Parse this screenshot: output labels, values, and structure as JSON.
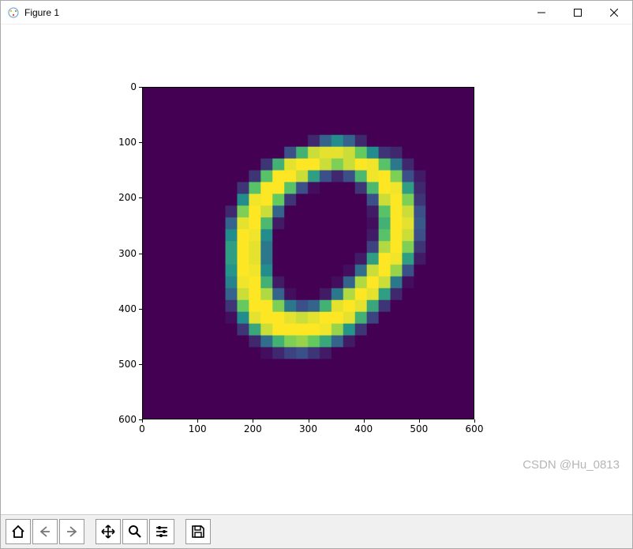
{
  "window": {
    "title": "Figure 1",
    "controls": {
      "minimize": "—",
      "maximize": "□",
      "close": "×"
    }
  },
  "plot": {
    "type": "heatmap",
    "xlim": [
      0,
      600
    ],
    "ylim": [
      0,
      600
    ],
    "y_inverted": true,
    "xticks": [
      0,
      100,
      200,
      300,
      400,
      500,
      600
    ],
    "yticks": [
      0,
      100,
      200,
      300,
      400,
      500,
      600
    ],
    "tick_fontsize": 12,
    "grid_size": 28,
    "colormap": "viridis",
    "colors": {
      "low": "#440154",
      "mid1": "#3b528b",
      "mid2": "#21918c",
      "mid3": "#5ec962",
      "high": "#fde725"
    },
    "background_color": "#ffffff",
    "axis_color": "#000000",
    "data": [
      [
        0,
        0,
        0,
        0,
        0,
        0,
        0,
        0,
        0,
        0,
        0,
        0,
        0,
        0,
        0,
        0,
        0,
        0,
        0,
        0,
        0,
        0,
        0,
        0,
        0,
        0,
        0,
        0
      ],
      [
        0,
        0,
        0,
        0,
        0,
        0,
        0,
        0,
        0,
        0,
        0,
        0,
        0,
        0,
        0,
        0,
        0,
        0,
        0,
        0,
        0,
        0,
        0,
        0,
        0,
        0,
        0,
        0
      ],
      [
        0,
        0,
        0,
        0,
        0,
        0,
        0,
        0,
        0,
        0,
        0,
        0,
        0,
        0,
        0,
        0,
        0,
        0,
        0,
        0,
        0,
        0,
        0,
        0,
        0,
        0,
        0,
        0
      ],
      [
        0,
        0,
        0,
        0,
        0,
        0,
        0,
        0,
        0,
        0,
        0,
        0,
        0,
        0,
        0,
        0,
        0,
        0,
        0,
        0,
        0,
        0,
        0,
        0,
        0,
        0,
        0,
        0
      ],
      [
        0,
        0,
        0,
        0,
        0,
        0,
        0,
        0,
        0,
        0,
        0,
        0,
        0,
        0,
        30,
        80,
        120,
        80,
        30,
        0,
        0,
        0,
        0,
        0,
        0,
        0,
        0,
        0
      ],
      [
        0,
        0,
        0,
        0,
        0,
        0,
        0,
        0,
        0,
        0,
        0,
        0,
        60,
        160,
        230,
        240,
        240,
        230,
        190,
        120,
        40,
        30,
        0,
        0,
        0,
        0,
        0,
        0
      ],
      [
        0,
        0,
        0,
        0,
        0,
        0,
        0,
        0,
        0,
        0,
        40,
        160,
        240,
        250,
        250,
        230,
        200,
        230,
        250,
        245,
        180,
        100,
        30,
        0,
        0,
        0,
        0,
        0
      ],
      [
        0,
        0,
        0,
        0,
        0,
        0,
        0,
        0,
        0,
        40,
        180,
        250,
        250,
        230,
        140,
        60,
        30,
        60,
        170,
        245,
        250,
        200,
        60,
        20,
        0,
        0,
        0,
        0
      ],
      [
        0,
        0,
        0,
        0,
        0,
        0,
        0,
        0,
        40,
        180,
        250,
        250,
        180,
        60,
        10,
        0,
        0,
        0,
        40,
        170,
        250,
        245,
        140,
        30,
        0,
        0,
        0,
        0
      ],
      [
        0,
        0,
        0,
        0,
        0,
        0,
        0,
        0,
        120,
        245,
        250,
        190,
        40,
        0,
        0,
        0,
        0,
        0,
        0,
        60,
        230,
        250,
        200,
        40,
        0,
        0,
        0,
        0
      ],
      [
        0,
        0,
        0,
        0,
        0,
        0,
        0,
        30,
        200,
        250,
        230,
        80,
        0,
        0,
        0,
        0,
        0,
        0,
        0,
        20,
        180,
        250,
        230,
        60,
        0,
        0,
        0,
        0
      ],
      [
        0,
        0,
        0,
        0,
        0,
        0,
        0,
        80,
        240,
        250,
        170,
        20,
        0,
        0,
        0,
        0,
        0,
        0,
        0,
        10,
        160,
        250,
        240,
        70,
        0,
        0,
        0,
        0
      ],
      [
        0,
        0,
        0,
        0,
        0,
        0,
        0,
        120,
        250,
        245,
        120,
        0,
        0,
        0,
        0,
        0,
        0,
        0,
        0,
        20,
        180,
        250,
        230,
        60,
        0,
        0,
        0,
        0
      ],
      [
        0,
        0,
        0,
        0,
        0,
        0,
        0,
        140,
        250,
        240,
        100,
        0,
        0,
        0,
        0,
        0,
        0,
        0,
        0,
        50,
        220,
        250,
        200,
        40,
        0,
        0,
        0,
        0
      ],
      [
        0,
        0,
        0,
        0,
        0,
        0,
        0,
        140,
        250,
        240,
        100,
        0,
        0,
        0,
        0,
        0,
        0,
        0,
        20,
        140,
        250,
        245,
        140,
        20,
        0,
        0,
        0,
        0
      ],
      [
        0,
        0,
        0,
        0,
        0,
        0,
        0,
        130,
        250,
        245,
        120,
        0,
        0,
        0,
        0,
        0,
        0,
        10,
        90,
        230,
        250,
        210,
        60,
        0,
        0,
        0,
        0,
        0
      ],
      [
        0,
        0,
        0,
        0,
        0,
        0,
        0,
        110,
        245,
        250,
        160,
        20,
        0,
        0,
        0,
        0,
        10,
        80,
        220,
        250,
        230,
        100,
        10,
        0,
        0,
        0,
        0,
        0
      ],
      [
        0,
        0,
        0,
        0,
        0,
        0,
        0,
        80,
        230,
        250,
        220,
        80,
        10,
        0,
        0,
        20,
        100,
        220,
        250,
        240,
        140,
        30,
        0,
        0,
        0,
        0,
        0,
        0
      ],
      [
        0,
        0,
        0,
        0,
        0,
        0,
        0,
        40,
        190,
        250,
        250,
        200,
        100,
        60,
        80,
        160,
        240,
        250,
        240,
        150,
        40,
        0,
        0,
        0,
        0,
        0,
        0,
        0
      ],
      [
        0,
        0,
        0,
        0,
        0,
        0,
        0,
        10,
        120,
        240,
        250,
        250,
        240,
        230,
        240,
        250,
        250,
        240,
        160,
        50,
        0,
        0,
        0,
        0,
        0,
        0,
        0,
        0
      ],
      [
        0,
        0,
        0,
        0,
        0,
        0,
        0,
        0,
        40,
        150,
        230,
        250,
        250,
        250,
        250,
        245,
        210,
        130,
        40,
        0,
        0,
        0,
        0,
        0,
        0,
        0,
        0,
        0
      ],
      [
        0,
        0,
        0,
        0,
        0,
        0,
        0,
        0,
        0,
        30,
        90,
        160,
        200,
        210,
        190,
        150,
        80,
        20,
        0,
        0,
        0,
        0,
        0,
        0,
        0,
        0,
        0,
        0
      ],
      [
        0,
        0,
        0,
        0,
        0,
        0,
        0,
        0,
        0,
        0,
        10,
        30,
        50,
        60,
        40,
        20,
        0,
        0,
        0,
        0,
        0,
        0,
        0,
        0,
        0,
        0,
        0,
        0
      ],
      [
        0,
        0,
        0,
        0,
        0,
        0,
        0,
        0,
        0,
        0,
        0,
        0,
        0,
        0,
        0,
        0,
        0,
        0,
        0,
        0,
        0,
        0,
        0,
        0,
        0,
        0,
        0,
        0
      ],
      [
        0,
        0,
        0,
        0,
        0,
        0,
        0,
        0,
        0,
        0,
        0,
        0,
        0,
        0,
        0,
        0,
        0,
        0,
        0,
        0,
        0,
        0,
        0,
        0,
        0,
        0,
        0,
        0
      ],
      [
        0,
        0,
        0,
        0,
        0,
        0,
        0,
        0,
        0,
        0,
        0,
        0,
        0,
        0,
        0,
        0,
        0,
        0,
        0,
        0,
        0,
        0,
        0,
        0,
        0,
        0,
        0,
        0
      ],
      [
        0,
        0,
        0,
        0,
        0,
        0,
        0,
        0,
        0,
        0,
        0,
        0,
        0,
        0,
        0,
        0,
        0,
        0,
        0,
        0,
        0,
        0,
        0,
        0,
        0,
        0,
        0,
        0
      ],
      [
        0,
        0,
        0,
        0,
        0,
        0,
        0,
        0,
        0,
        0,
        0,
        0,
        0,
        0,
        0,
        0,
        0,
        0,
        0,
        0,
        0,
        0,
        0,
        0,
        0,
        0,
        0,
        0
      ]
    ]
  },
  "toolbar": {
    "buttons": [
      {
        "name": "home-icon",
        "title": "Home"
      },
      {
        "name": "back-icon",
        "title": "Back"
      },
      {
        "name": "forward-icon",
        "title": "Forward"
      },
      {
        "sep": true
      },
      {
        "name": "pan-icon",
        "title": "Pan"
      },
      {
        "name": "zoom-icon",
        "title": "Zoom"
      },
      {
        "name": "subplots-icon",
        "title": "Configure subplots"
      },
      {
        "sep": true
      },
      {
        "name": "save-icon",
        "title": "Save"
      }
    ]
  },
  "watermark": "CSDN @Hu_0813"
}
